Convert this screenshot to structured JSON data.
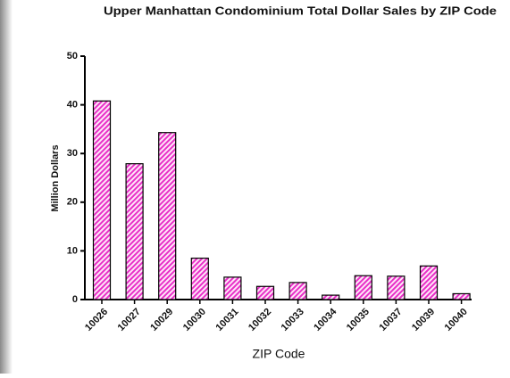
{
  "chart_data": {
    "type": "bar",
    "title": "Upper Manhattan Condominium Total Dollar Sales by ZIP Code",
    "x_label": "ZIP Code",
    "y_label": "Million Dollars",
    "categories": [
      "10026",
      "10027",
      "10029",
      "10030",
      "10031",
      "10032",
      "10033",
      "10034",
      "10035",
      "10037",
      "10039",
      "10040"
    ],
    "values": [
      40.8,
      27.9,
      34.3,
      8.5,
      4.6,
      2.7,
      3.5,
      0.9,
      4.9,
      4.8,
      6.9,
      1.2
    ],
    "color": "#e830c8",
    "ylim": [
      0,
      50
    ],
    "yticks": [
      0,
      10,
      20,
      30,
      40,
      50
    ],
    "grid": false
  }
}
